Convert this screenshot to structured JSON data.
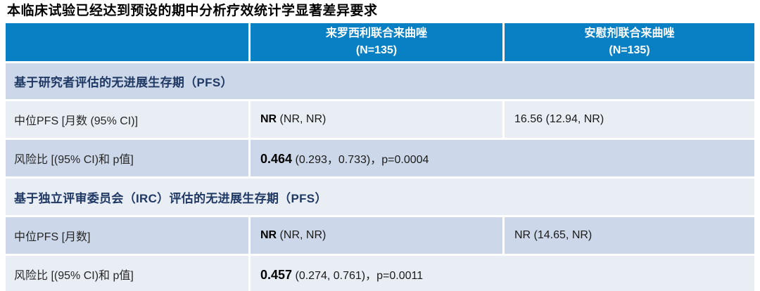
{
  "title": "本临床试验已经达到预设的期中分析疗效统计学显著差异要求",
  "colors": {
    "header_blue": "#0a80c4",
    "band_medium": "#ccd8e9",
    "band_light": "#e9eef5",
    "section_text_navy": "#1f3864",
    "header_text": "#ffffff",
    "body_text": "#262626"
  },
  "table": {
    "arm_columns": [
      {
        "name": "来罗西利联合来曲唑",
        "n": "(N=135)"
      },
      {
        "name": "安慰剂联合来曲唑",
        "n": "(N=135)"
      }
    ],
    "sections": [
      {
        "header": "基于研究者评估的无进展生存期（PFS）",
        "median_row": {
          "label": "中位PFS [月数 (95% CI)]",
          "arm1_main": "NR",
          "arm1_ci": " (NR, NR)",
          "arm2": "16.56 (12.94, NR)"
        },
        "hr_row": {
          "label": "风险比 [(95% CI)和 p值]",
          "hr_main": "0.464",
          "hr_rest": " (0.293，0.733)，p=0.0004"
        }
      },
      {
        "header": "基于独立评审委员会（IRC）评估的无进展生存期（PFS）",
        "median_row": {
          "label": "中位PFS [月数]",
          "arm1_main": "NR",
          "arm1_ci": " (NR, NR)",
          "arm2": "NR (14.65, NR)"
        },
        "hr_row": {
          "label": "风险比 [(95% CI)和 p值]",
          "hr_main": "0.457",
          "hr_rest": " (0.274, 0.761)，p=0.0011"
        }
      }
    ]
  }
}
